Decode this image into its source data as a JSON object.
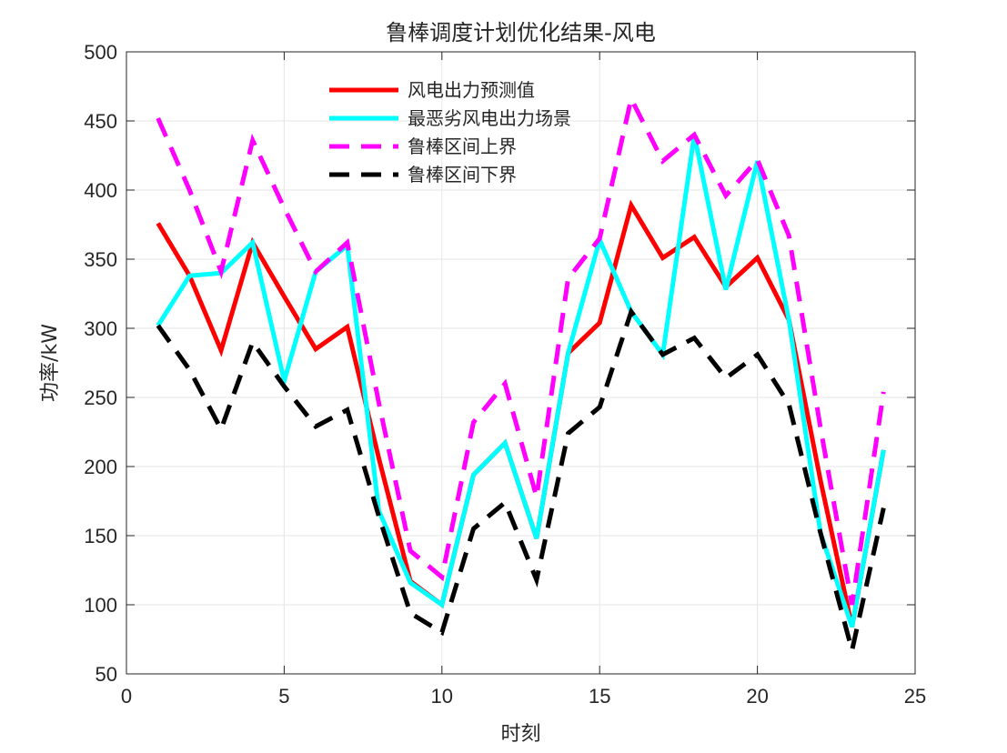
{
  "chart_data": {
    "type": "line",
    "title": "鲁棒调度计划优化结果-风电",
    "xlabel": "时刻",
    "ylabel": "功率/kW",
    "xlim": [
      0,
      25
    ],
    "ylim": [
      50,
      500
    ],
    "xticks": [
      0,
      5,
      10,
      15,
      20,
      25
    ],
    "yticks": [
      50,
      100,
      150,
      200,
      250,
      300,
      350,
      400,
      450,
      500
    ],
    "grid": true,
    "legend_position": "top-center",
    "x": [
      1,
      2,
      3,
      4,
      5,
      6,
      7,
      8,
      9,
      10,
      11,
      12,
      13,
      14,
      15,
      16,
      17,
      18,
      19,
      20,
      21,
      22,
      23,
      24
    ],
    "series": [
      {
        "name": "风电出力预测值",
        "color": "#ff0000",
        "dash": "solid",
        "values": [
          376,
          338,
          284,
          362,
          323,
          285,
          301,
          206,
          117,
          100,
          194,
          217,
          148,
          282,
          304,
          389,
          351,
          366,
          330,
          351,
          306,
          190,
          84,
          212
        ]
      },
      {
        "name": "最恶劣风电出力场景",
        "color": "#00ffff",
        "dash": "solid",
        "values": [
          302,
          338,
          340,
          362,
          262,
          341,
          360,
          168,
          116,
          100,
          194,
          217,
          148,
          282,
          364,
          312,
          281,
          440,
          328,
          421,
          306,
          152,
          84,
          212
        ]
      },
      {
        "name": "鲁棒区间上界",
        "color": "#ff00ff",
        "dash": "dashed",
        "values": [
          452,
          400,
          341,
          436,
          387,
          341,
          362,
          246,
          139,
          120,
          232,
          260,
          178,
          336,
          365,
          466,
          421,
          440,
          396,
          422,
          367,
          228,
          100,
          254
        ]
      },
      {
        "name": "鲁棒区间下界",
        "color": "#000000",
        "dash": "dashed",
        "values": [
          302,
          270,
          227,
          290,
          258,
          229,
          241,
          164,
          94,
          80,
          155,
          174,
          118,
          224,
          243,
          312,
          281,
          293,
          264,
          281,
          245,
          152,
          67,
          170
        ]
      }
    ]
  }
}
